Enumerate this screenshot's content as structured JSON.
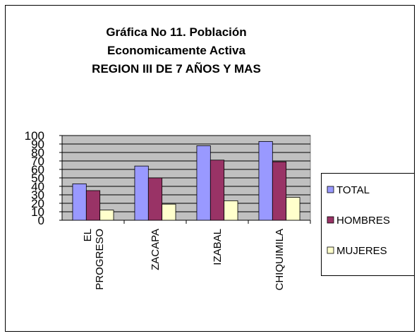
{
  "chart_data": {
    "type": "bar",
    "title": [
      "Gráfica No 11.  Población",
      "Economicamente Activa",
      "REGION  III DE 7 AÑOS Y MAS"
    ],
    "categories": [
      "EL PROGRESO",
      "ZACAPA",
      "IZABAL",
      "CHIQUIMILA"
    ],
    "series": [
      {
        "name": "TOTAL",
        "color": "#9999ff",
        "values": [
          43,
          64,
          88,
          93
        ]
      },
      {
        "name": "HOMBRES",
        "color": "#993366",
        "values": [
          35,
          50,
          71,
          69
        ]
      },
      {
        "name": "MUJERES",
        "color": "#ffffcc",
        "values": [
          12,
          19,
          23,
          27
        ]
      }
    ],
    "ylim": [
      0,
      100
    ],
    "yticks": [
      0,
      10,
      20,
      30,
      40,
      50,
      60,
      70,
      80,
      90,
      100
    ],
    "grid": true,
    "legend": "right"
  }
}
